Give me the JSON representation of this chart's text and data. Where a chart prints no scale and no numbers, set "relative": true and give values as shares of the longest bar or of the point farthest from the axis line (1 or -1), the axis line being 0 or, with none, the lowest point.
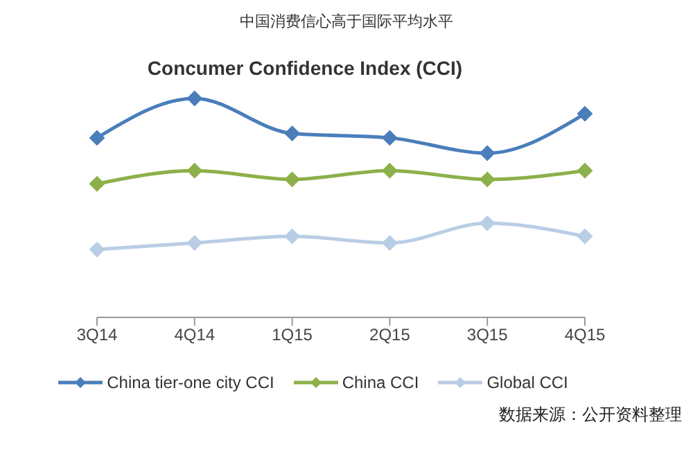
{
  "chart_data": {
    "type": "line",
    "title": "中国消费信心高于国际平均水平",
    "subtitle": "Concumer Confidence Index (CCI)",
    "annotations": [
      "数据来源：公开资料整理"
    ],
    "categories": [
      "3Q14",
      "4Q14",
      "1Q15",
      "2Q15",
      "3Q15",
      "4Q15"
    ],
    "relative": true,
    "marker": "diamond",
    "line_style": "solid",
    "legend": "bottom",
    "grid": false,
    "series": [
      {
        "name": "China tier-one city CCI",
        "color": "#4a7ebb",
        "values": [
          0.82,
          1,
          0.84,
          0.82,
          0.75,
          0.93
        ]
      },
      {
        "name": "China CCI",
        "color": "#8db04a",
        "values": [
          0.61,
          0.67,
          0.63,
          0.67,
          0.63,
          0.67
        ]
      },
      {
        "name": "Global CCI",
        "color": "#b9cde5",
        "values": [
          0.31,
          0.34,
          0.37,
          0.34,
          0.43,
          0.37
        ]
      }
    ]
  }
}
